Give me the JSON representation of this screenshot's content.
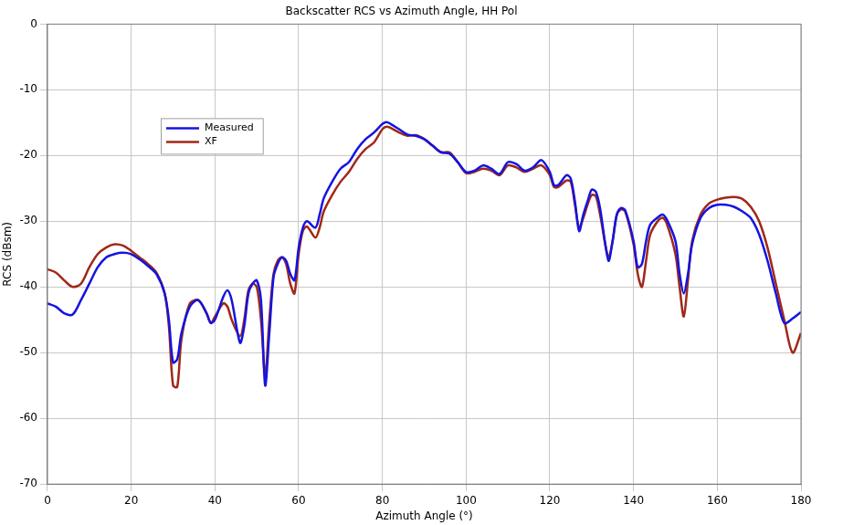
{
  "chart_data": {
    "type": "line",
    "title": "Backscatter RCS vs Azimuth Angle, HH Pol",
    "x_label": "Azimuth Angle (°)",
    "y_label": "RCS (dBsm)",
    "x": [
      0,
      2,
      4,
      6,
      8,
      10,
      12,
      14,
      16,
      18,
      20,
      22,
      24,
      26,
      28,
      29,
      30,
      31,
      32,
      34,
      36,
      38,
      39,
      40,
      42,
      43,
      44,
      46,
      47,
      48,
      49,
      50,
      51,
      52,
      53,
      54,
      55,
      56,
      57,
      58,
      59,
      60,
      61,
      62,
      64,
      65,
      66,
      68,
      70,
      72,
      74,
      76,
      78,
      80,
      81,
      82,
      84,
      86,
      88,
      90,
      92,
      94,
      96,
      98,
      100,
      102,
      104,
      106,
      108,
      110,
      112,
      114,
      116,
      118,
      120,
      121,
      122,
      124,
      125,
      126,
      127,
      128,
      129,
      130,
      131,
      132,
      134,
      135,
      136,
      137,
      138,
      140,
      141,
      142,
      143,
      144,
      146,
      147,
      148,
      150,
      151,
      152,
      153,
      154,
      156,
      158,
      160,
      162,
      164,
      166,
      168,
      170,
      172,
      174,
      176,
      178,
      180
    ],
    "series": [
      {
        "name": "Measured",
        "color": "#1414e0",
        "values": [
          -42.5,
          -43,
          -44,
          -44.2,
          -42,
          -39.5,
          -37,
          -35.5,
          -35,
          -34.8,
          -35,
          -35.8,
          -36.8,
          -38,
          -41,
          -45,
          -51.5,
          -51,
          -47,
          -43,
          -42,
          -44,
          -45.5,
          -45,
          -41.5,
          -40.5,
          -42,
          -48.5,
          -46,
          -41,
          -39.5,
          -39,
          -42,
          -55,
          -47,
          -38.5,
          -36.5,
          -35.5,
          -36,
          -38,
          -39,
          -34,
          -31,
          -30,
          -31,
          -29,
          -26.5,
          -24,
          -22,
          -21,
          -19,
          -17.5,
          -16.5,
          -15.2,
          -14.9,
          -15.2,
          -16,
          -16.8,
          -17,
          -17.5,
          -18.5,
          -19.5,
          -19.7,
          -21,
          -22.5,
          -22.3,
          -21.5,
          -22,
          -22.8,
          -21,
          -21.3,
          -22.3,
          -21.8,
          -20.7,
          -22.5,
          -24.5,
          -24.5,
          -23,
          -23.5,
          -27,
          -31.5,
          -29,
          -27,
          -25.2,
          -25.5,
          -28,
          -36,
          -33,
          -29,
          -28,
          -28.3,
          -33,
          -37,
          -36.5,
          -33,
          -30.5,
          -29.3,
          -29,
          -29.8,
          -33,
          -38,
          -41,
          -38,
          -33.5,
          -29.5,
          -28,
          -27.5,
          -27.5,
          -27.8,
          -28.5,
          -29.5,
          -32,
          -36,
          -41,
          -45.5,
          -44.8,
          -43.8
        ]
      },
      {
        "name": "XF",
        "color": "#a02818",
        "values": [
          -37.3,
          -37.8,
          -39,
          -40,
          -39.5,
          -37,
          -35,
          -34,
          -33.5,
          -33.7,
          -34.5,
          -35.5,
          -36.5,
          -37.8,
          -41,
          -46,
          -55,
          -55.2,
          -48,
          -42.5,
          -42,
          -44,
          -45.5,
          -44.5,
          -42.5,
          -43,
          -45,
          -47.5,
          -45,
          -40.5,
          -39.5,
          -40,
          -45,
          -53.5,
          -45,
          -38,
          -36,
          -35.5,
          -36.5,
          -39.5,
          -41,
          -35,
          -31.5,
          -30.8,
          -32.5,
          -31,
          -28.5,
          -26,
          -24,
          -22.5,
          -20.5,
          -19,
          -18,
          -16,
          -15.6,
          -15.8,
          -16.5,
          -17,
          -16.9,
          -17.5,
          -18.5,
          -19.5,
          -19.5,
          -21,
          -22.7,
          -22.5,
          -22,
          -22.3,
          -23,
          -21.5,
          -21.8,
          -22.5,
          -22,
          -21.5,
          -23,
          -24.8,
          -24.8,
          -23.8,
          -24,
          -27.5,
          -31,
          -29.5,
          -27.5,
          -26,
          -26.2,
          -29,
          -35.5,
          -33,
          -29,
          -28.2,
          -28.5,
          -33.5,
          -38,
          -40,
          -36,
          -32,
          -29.8,
          -29.5,
          -30.5,
          -35,
          -40,
          -44.5,
          -39,
          -33,
          -29,
          -27.3,
          -26.7,
          -26.4,
          -26.3,
          -26.6,
          -27.8,
          -30,
          -34,
          -39.5,
          -45,
          -50,
          -47
        ]
      }
    ],
    "xlim": [
      0,
      180
    ],
    "xticks": [
      0,
      20,
      40,
      60,
      80,
      100,
      120,
      140,
      160,
      180
    ],
    "ylim": [
      -70,
      0
    ],
    "yticks": [
      -70,
      -60,
      -50,
      -40,
      -30,
      -20,
      -10,
      0
    ],
    "grid": true,
    "legend": "upper left"
  }
}
